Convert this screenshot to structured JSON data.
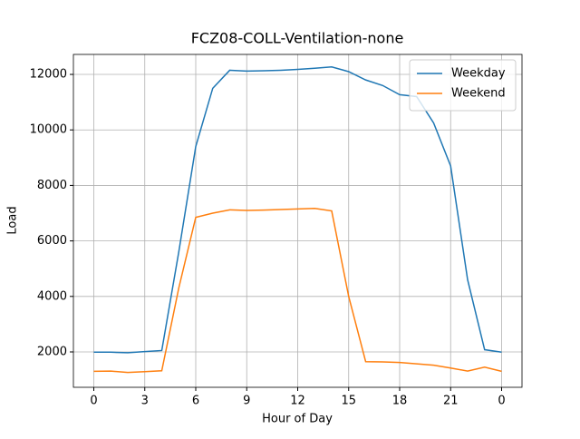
{
  "chart_data": {
    "type": "line",
    "title": "FCZ08-COLL-Ventilation-none",
    "x_label": "Hour of Day",
    "y_label": "Load",
    "x": [
      0,
      1,
      2,
      3,
      4,
      5,
      6,
      7,
      8,
      9,
      10,
      11,
      12,
      13,
      14,
      15,
      16,
      17,
      18,
      19,
      20,
      21,
      22,
      23,
      24
    ],
    "series": [
      {
        "name": "Weekday",
        "color": "#1f77b4",
        "values": [
          1990,
          1990,
          1970,
          2010,
          2050,
          5600,
          9400,
          11500,
          12150,
          12120,
          12130,
          12150,
          12180,
          12220,
          12270,
          12100,
          11800,
          11600,
          11270,
          11200,
          10250,
          8700,
          4600,
          2080,
          1990
        ]
      },
      {
        "name": "Weekend",
        "color": "#ff7f0e",
        "values": [
          1300,
          1310,
          1260,
          1290,
          1320,
          4300,
          6850,
          7000,
          7120,
          7100,
          7110,
          7130,
          7150,
          7170,
          7080,
          4000,
          1650,
          1640,
          1620,
          1570,
          1520,
          1420,
          1310,
          1450,
          1300
        ]
      }
    ],
    "xlim": [
      -1.2,
      25.2
    ],
    "ylim": [
      725,
      12720
    ],
    "xticks": [
      0,
      3,
      6,
      9,
      12,
      15,
      18,
      21,
      {
        "value": 24,
        "label": "0"
      }
    ],
    "yticks": [
      2000,
      4000,
      6000,
      8000,
      10000,
      12000
    ],
    "grid": true,
    "legend": "upper right"
  }
}
